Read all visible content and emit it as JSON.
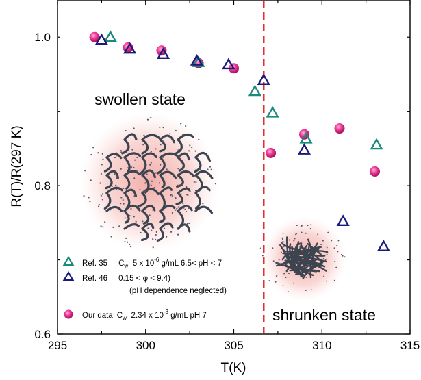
{
  "chart_data": {
    "type": "scatter",
    "xlabel": "T(K)",
    "ylabel": "R(T)/R(297 K)",
    "xlim": [
      295,
      315
    ],
    "ylim": [
      0.6,
      1.05
    ],
    "x_ticks": [
      "295",
      "300",
      "305",
      "310",
      "315"
    ],
    "y_ticks": [
      "0.6",
      "0.8",
      "1.0"
    ],
    "grid": false,
    "transition_line_x": 306.7,
    "annotations": {
      "swollen": "swollen state",
      "shrunken": "shrunken state"
    },
    "series": [
      {
        "name": "Ref. 35",
        "marker": "triangle-open",
        "color": "#1a8a7a",
        "points": [
          [
            298.0,
            1.0
          ],
          [
            303.0,
            0.966
          ],
          [
            306.2,
            0.927
          ],
          [
            307.2,
            0.898
          ],
          [
            309.1,
            0.863
          ],
          [
            313.1,
            0.855
          ]
        ]
      },
      {
        "name": "Ref. 46",
        "marker": "triangle-open",
        "color": "#1a1a7a",
        "points": [
          [
            297.5,
            0.996
          ],
          [
            299.1,
            0.984
          ],
          [
            301.0,
            0.977
          ],
          [
            302.9,
            0.968
          ],
          [
            304.7,
            0.963
          ],
          [
            306.7,
            0.942
          ],
          [
            309.0,
            0.848
          ],
          [
            311.2,
            0.752
          ],
          [
            313.5,
            0.718
          ]
        ]
      },
      {
        "name": "Our data",
        "marker": "circle-filled",
        "color": "#e8308a",
        "points": [
          [
            297.1,
            1.0
          ],
          [
            299.0,
            0.986
          ],
          [
            300.9,
            0.982
          ],
          [
            303.0,
            0.965
          ],
          [
            305.0,
            0.958
          ],
          [
            307.1,
            0.844
          ],
          [
            309.0,
            0.869
          ],
          [
            311.0,
            0.877
          ],
          [
            313.0,
            0.819
          ]
        ]
      }
    ],
    "legend": {
      "placement": "lower-left",
      "entries": [
        {
          "ref": "Ref. 35",
          "text_a": "C",
          "sub": "w",
          "text_b": "=5 x 10",
          "sup": "-6",
          "text_c": " g/mL  6.5< pH < 7"
        },
        {
          "ref": "Ref. 46",
          "text_a": "0.15 < ",
          "phi": "φ",
          "text_b": " < 9.4)",
          "line2": "(pH dependence neglected)"
        },
        {
          "ref": "Our data",
          "text_a": "C",
          "sub": "w",
          "text_b": "=2.34 x 10",
          "sup": "-3",
          "text_c": " g/mL  pH 7"
        }
      ]
    }
  },
  "colors": {
    "transition_line": "#e02020",
    "swollen_glow": "#f3b7b2",
    "shrunken_glow": "#f3b7b2",
    "polymer": "#3c4450"
  }
}
